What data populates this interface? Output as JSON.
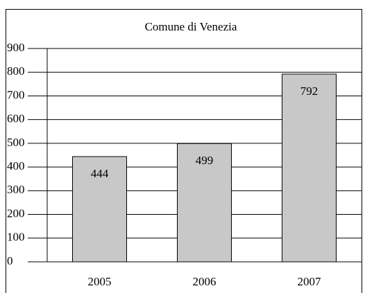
{
  "chart_data": {
    "type": "bar",
    "title": "Comune di Venezia",
    "categories": [
      "2005",
      "2006",
      "2007"
    ],
    "values": [
      444,
      499,
      792
    ],
    "color": "#c8c8c8",
    "ylim": [
      0,
      900
    ],
    "yticks": [
      0,
      100,
      200,
      300,
      400,
      500,
      600,
      700,
      800,
      900
    ],
    "grid": true
  }
}
